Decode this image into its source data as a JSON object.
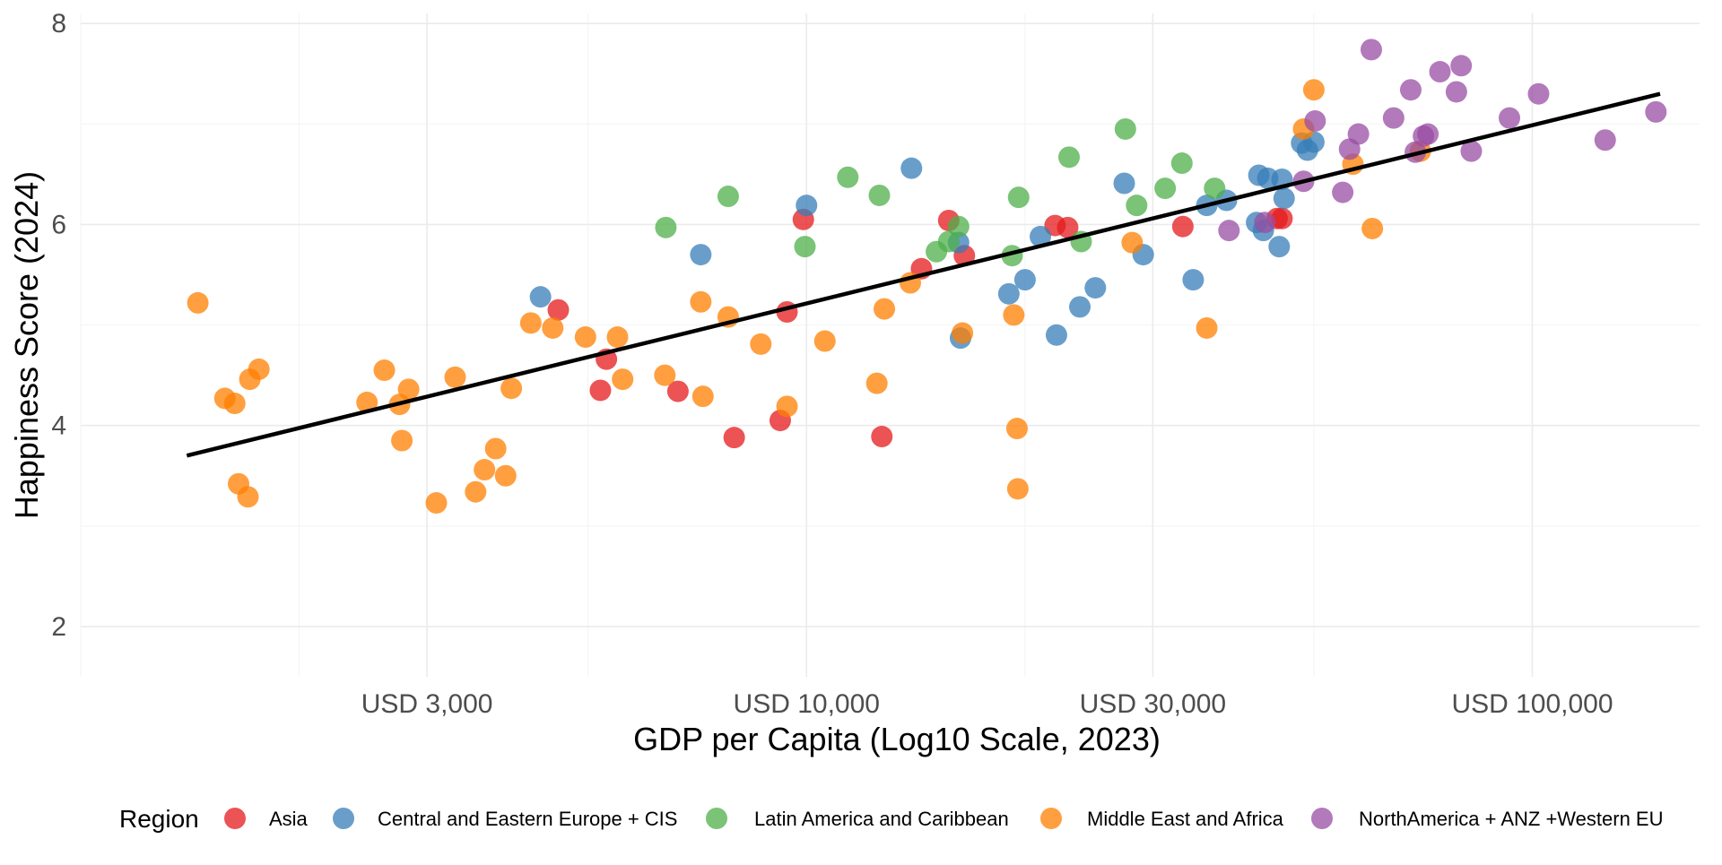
{
  "chart_data": {
    "type": "scatter",
    "title": "",
    "xlabel": "GDP per Capita (Log10 Scale, 2023)",
    "ylabel": "Happiness Score (2024)",
    "x_scale": "log10",
    "xlim": [
      1000,
      170000
    ],
    "ylim": [
      1.5,
      8.1
    ],
    "grid": true,
    "x_ticks": [
      {
        "value": 3000,
        "label": "USD 3,000"
      },
      {
        "value": 10000,
        "label": "USD 10,000"
      },
      {
        "value": 30000,
        "label": "USD 30,000"
      },
      {
        "value": 100000,
        "label": "USD 100,000"
      }
    ],
    "x_minor_grid": [
      1000,
      2000,
      5000,
      20000,
      50000
    ],
    "y_ticks": [
      {
        "value": 2,
        "label": "2"
      },
      {
        "value": 4,
        "label": "4"
      },
      {
        "value": 6,
        "label": "6"
      },
      {
        "value": 8,
        "label": "8"
      }
    ],
    "y_minor_grid": [
      3,
      5,
      7
    ],
    "legend": {
      "title": "Region",
      "position": "bottom",
      "items": [
        {
          "name": "Asia",
          "color": "#E41A1C"
        },
        {
          "name": "Central and Eastern Europe + CIS",
          "color": "#377EB8"
        },
        {
          "name": "Latin America and Caribbean",
          "color": "#4DAF4A"
        },
        {
          "name": "Middle East and Africa",
          "color": "#FF7F00"
        },
        {
          "name": "NorthAmerica + ANZ +Western EU",
          "color": "#984EA3"
        }
      ]
    },
    "trend_line": {
      "x": [
        1400,
        150000
      ],
      "y": [
        3.7,
        7.3
      ]
    },
    "series": [
      {
        "name": "Asia",
        "color": "#E41A1C",
        "points": [
          [
            4550,
            5.15
          ],
          [
            5200,
            4.35
          ],
          [
            5300,
            4.66
          ],
          [
            6650,
            4.34
          ],
          [
            7950,
            3.88
          ],
          [
            9200,
            4.05
          ],
          [
            9400,
            5.13
          ],
          [
            9900,
            6.05
          ],
          [
            12700,
            3.89
          ],
          [
            14400,
            5.56
          ],
          [
            15700,
            6.04
          ],
          [
            16500,
            5.69
          ],
          [
            22000,
            5.99
          ],
          [
            22900,
            5.97
          ],
          [
            33000,
            5.98
          ],
          [
            44500,
            6.06
          ],
          [
            45200,
            6.06
          ]
        ]
      },
      {
        "name": "Central and Eastern Europe + CIS",
        "color": "#377EB8",
        "points": [
          [
            4300,
            5.28
          ],
          [
            7150,
            5.7
          ],
          [
            10000,
            6.19
          ],
          [
            13950,
            6.56
          ],
          [
            16200,
            5.82
          ],
          [
            16300,
            4.87
          ],
          [
            19000,
            5.31
          ],
          [
            20000,
            5.45
          ],
          [
            21000,
            5.88
          ],
          [
            22100,
            4.9
          ],
          [
            23800,
            5.18
          ],
          [
            25000,
            5.37
          ],
          [
            27400,
            6.41
          ],
          [
            29100,
            5.7
          ],
          [
            34100,
            5.45
          ],
          [
            35600,
            6.19
          ],
          [
            37900,
            6.24
          ],
          [
            41700,
            6.02
          ],
          [
            42000,
            6.49
          ],
          [
            42600,
            5.94
          ],
          [
            43200,
            6.46
          ],
          [
            44800,
            5.78
          ],
          [
            45200,
            6.45
          ],
          [
            45500,
            6.26
          ],
          [
            48100,
            6.81
          ],
          [
            49000,
            6.74
          ],
          [
            50000,
            6.82
          ]
        ]
      },
      {
        "name": "Latin America and Caribbean",
        "color": "#4DAF4A",
        "points": [
          [
            6400,
            5.97
          ],
          [
            7800,
            6.28
          ],
          [
            9950,
            5.78
          ],
          [
            11400,
            6.47
          ],
          [
            12600,
            6.29
          ],
          [
            15100,
            5.73
          ],
          [
            15700,
            5.83
          ],
          [
            16200,
            5.98
          ],
          [
            19200,
            5.69
          ],
          [
            19600,
            6.27
          ],
          [
            23000,
            6.67
          ],
          [
            23900,
            5.83
          ],
          [
            27500,
            6.95
          ],
          [
            28500,
            6.19
          ],
          [
            31200,
            6.36
          ],
          [
            32900,
            6.61
          ],
          [
            36500,
            6.36
          ]
        ]
      },
      {
        "name": "Middle East and Africa",
        "color": "#FF7F00",
        "points": [
          [
            1450,
            5.22
          ],
          [
            1580,
            4.27
          ],
          [
            1630,
            4.22
          ],
          [
            1650,
            3.42
          ],
          [
            1700,
            3.29
          ],
          [
            1710,
            4.46
          ],
          [
            1760,
            4.56
          ],
          [
            2480,
            4.23
          ],
          [
            2620,
            4.55
          ],
          [
            2750,
            4.21
          ],
          [
            2770,
            3.85
          ],
          [
            2830,
            4.36
          ],
          [
            3090,
            3.23
          ],
          [
            3280,
            4.48
          ],
          [
            3500,
            3.34
          ],
          [
            3600,
            3.56
          ],
          [
            3730,
            3.77
          ],
          [
            3850,
            3.5
          ],
          [
            3920,
            4.37
          ],
          [
            4170,
            5.02
          ],
          [
            4470,
            4.97
          ],
          [
            4960,
            4.88
          ],
          [
            5490,
            4.88
          ],
          [
            5580,
            4.46
          ],
          [
            6380,
            4.5
          ],
          [
            7150,
            5.23
          ],
          [
            7200,
            4.29
          ],
          [
            7800,
            5.08
          ],
          [
            8650,
            4.81
          ],
          [
            9400,
            4.19
          ],
          [
            10600,
            4.84
          ],
          [
            12500,
            4.42
          ],
          [
            12800,
            5.16
          ],
          [
            13900,
            5.42
          ],
          [
            16400,
            4.92
          ],
          [
            19300,
            5.1
          ],
          [
            19500,
            3.97
          ],
          [
            19550,
            3.37
          ],
          [
            28100,
            5.82
          ],
          [
            35600,
            4.97
          ],
          [
            48400,
            6.95
          ],
          [
            50000,
            7.34
          ],
          [
            56600,
            6.6
          ],
          [
            60200,
            5.96
          ],
          [
            70100,
            6.73
          ]
        ]
      },
      {
        "name": "NorthAmerica + ANZ +Western EU",
        "color": "#984EA3",
        "points": [
          [
            38200,
            5.94
          ],
          [
            42800,
            6.02
          ],
          [
            48400,
            6.43
          ],
          [
            50200,
            7.03
          ],
          [
            54800,
            6.32
          ],
          [
            56000,
            6.75
          ],
          [
            57600,
            6.9
          ],
          [
            60000,
            7.74
          ],
          [
            64400,
            7.06
          ],
          [
            68000,
            7.34
          ],
          [
            69000,
            6.72
          ],
          [
            70800,
            6.88
          ],
          [
            71800,
            6.9
          ],
          [
            74600,
            7.52
          ],
          [
            78600,
            7.32
          ],
          [
            79800,
            7.58
          ],
          [
            82400,
            6.73
          ],
          [
            93000,
            7.06
          ],
          [
            102000,
            7.3
          ],
          [
            126000,
            6.84
          ],
          [
            148000,
            7.12
          ]
        ]
      }
    ]
  }
}
